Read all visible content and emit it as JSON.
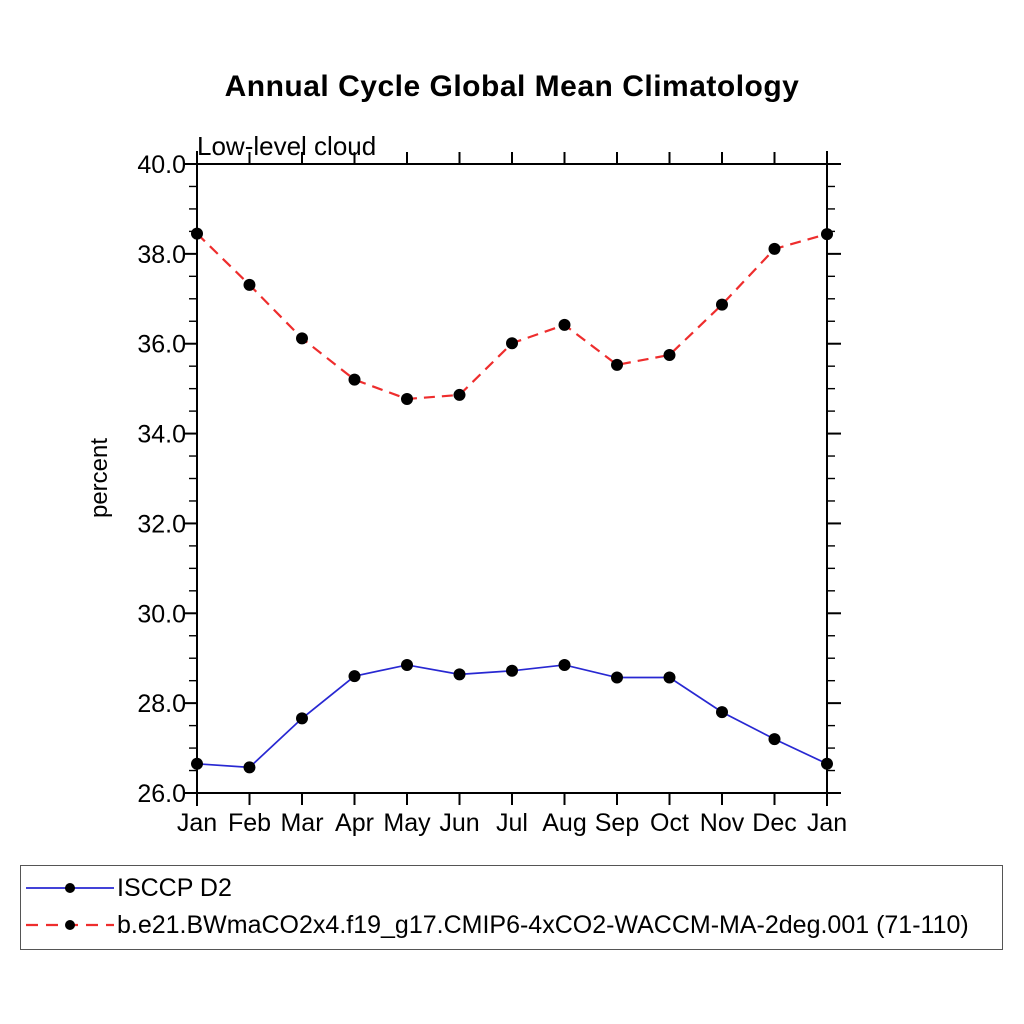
{
  "page": {
    "background": "#ffffff"
  },
  "chart_data": {
    "type": "line",
    "title": "Annual Cycle Global Mean Climatology",
    "subtitle": "Low-level cloud",
    "ylabel": "percent",
    "xlabel": "",
    "categories": [
      "Jan",
      "Feb",
      "Mar",
      "Apr",
      "May",
      "Jun",
      "Jul",
      "Aug",
      "Sep",
      "Oct",
      "Nov",
      "Dec",
      "Jan"
    ],
    "ylim": [
      26.0,
      40.0
    ],
    "ytick_major_step": 2.0,
    "ytick_minor_step": 0.5,
    "ytick_labels": [
      "26.0",
      "28.0",
      "30.0",
      "32.0",
      "34.0",
      "36.0",
      "38.0",
      "40.0"
    ],
    "grid": false,
    "legend_position": "bottom",
    "axis_color": "#000000",
    "marker_color": "#000000",
    "series": [
      {
        "name": "ISCCP D2",
        "color": "#2828d2",
        "line_style": "solid",
        "marker": "filled-circle",
        "values": [
          26.65,
          26.57,
          27.66,
          28.6,
          28.85,
          28.64,
          28.72,
          28.85,
          28.57,
          28.57,
          27.8,
          27.2,
          26.65
        ]
      },
      {
        "name": "b.e21.BWmaCO2x4.f19_g17.CMIP6-4xCO2-WACCM-MA-2deg.001 (71-110)",
        "color": "#ee2d2d",
        "line_style": "dashed",
        "marker": "filled-circle",
        "values": [
          38.45,
          37.31,
          36.12,
          35.2,
          34.77,
          34.86,
          36.01,
          36.42,
          35.53,
          35.75,
          36.87,
          38.11,
          38.44
        ]
      }
    ]
  }
}
